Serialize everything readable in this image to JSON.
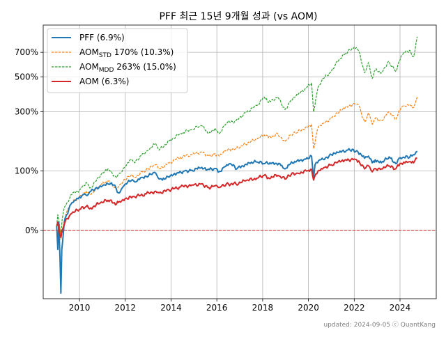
{
  "chart_data": {
    "type": "line",
    "title": "PFF 최근 15년 9개월 성과 (vs AOM)",
    "xlabel": "",
    "ylabel": "",
    "y_scale": "log(1+r)",
    "x_range": [
      "2008-06-01",
      "2025-08-01"
    ],
    "y_range": [
      -0.55,
      10.0
    ],
    "x_ticks": [
      {
        "label": "2010",
        "date": "2010-01-01"
      },
      {
        "label": "2012",
        "date": "2012-01-01"
      },
      {
        "label": "2014",
        "date": "2014-01-01"
      },
      {
        "label": "2016",
        "date": "2016-01-01"
      },
      {
        "label": "2018",
        "date": "2018-01-01"
      },
      {
        "label": "2020",
        "date": "2020-01-01"
      },
      {
        "label": "2022",
        "date": "2022-01-01"
      },
      {
        "label": "2024",
        "date": "2024-01-01"
      }
    ],
    "y_ticks": [
      {
        "label": "0%",
        "value": 0
      },
      {
        "label": "100%",
        "value": 1
      },
      {
        "label": "300%",
        "value": 3
      },
      {
        "label": "500%",
        "value": 5
      },
      {
        "label": "700%",
        "value": 7
      }
    ],
    "grid": true,
    "legend_position": "top-left",
    "reference_line": {
      "value": 0,
      "color": "#d62728",
      "style": "dashed"
    },
    "series": [
      {
        "name": "PFF (6.9%)",
        "name_parts": [
          "PFF (6.9%)",
          "",
          ""
        ],
        "color": "#1f77b4",
        "style": "solid",
        "width": 2,
        "points": [
          [
            "2009-01-02",
            0.05
          ],
          [
            "2009-01-20",
            -0.2
          ],
          [
            "2009-02-05",
            0.1
          ],
          [
            "2009-02-25",
            -0.3
          ],
          [
            "2009-03-10",
            -0.52
          ],
          [
            "2009-03-25",
            -0.2
          ],
          [
            "2009-04-10",
            -0.1
          ],
          [
            "2009-04-28",
            0.05
          ],
          [
            "2009-05-15",
            0.15
          ],
          [
            "2009-06-10",
            0.2
          ],
          [
            "2009-07-15",
            0.28
          ],
          [
            "2009-09-01",
            0.38
          ],
          [
            "2009-11-01",
            0.42
          ],
          [
            "2010-01-01",
            0.48
          ],
          [
            "2010-03-01",
            0.52
          ],
          [
            "2010-05-01",
            0.5
          ],
          [
            "2010-07-01",
            0.58
          ],
          [
            "2010-10-01",
            0.65
          ],
          [
            "2011-01-01",
            0.68
          ],
          [
            "2011-04-01",
            0.72
          ],
          [
            "2011-07-01",
            0.7
          ],
          [
            "2011-09-15",
            0.55
          ],
          [
            "2011-11-01",
            0.62
          ],
          [
            "2012-01-01",
            0.72
          ],
          [
            "2012-04-01",
            0.78
          ],
          [
            "2012-06-01",
            0.76
          ],
          [
            "2012-09-01",
            0.85
          ],
          [
            "2012-12-01",
            0.88
          ],
          [
            "2013-03-01",
            0.92
          ],
          [
            "2013-05-01",
            0.95
          ],
          [
            "2013-06-25",
            0.82
          ],
          [
            "2013-09-01",
            0.84
          ],
          [
            "2013-12-01",
            0.86
          ],
          [
            "2014-04-01",
            0.95
          ],
          [
            "2014-08-01",
            1.0
          ],
          [
            "2014-12-01",
            1.02
          ],
          [
            "2015-04-01",
            1.07
          ],
          [
            "2015-08-01",
            1.03
          ],
          [
            "2015-12-01",
            1.06
          ],
          [
            "2016-02-10",
            0.99
          ],
          [
            "2016-05-01",
            1.1
          ],
          [
            "2016-08-01",
            1.18
          ],
          [
            "2016-11-15",
            1.05
          ],
          [
            "2017-02-01",
            1.12
          ],
          [
            "2017-06-01",
            1.2
          ],
          [
            "2017-10-01",
            1.22
          ],
          [
            "2018-02-01",
            1.18
          ],
          [
            "2018-06-01",
            1.2
          ],
          [
            "2018-10-01",
            1.18
          ],
          [
            "2018-12-24",
            1.05
          ],
          [
            "2019-03-01",
            1.15
          ],
          [
            "2019-07-01",
            1.25
          ],
          [
            "2019-11-01",
            1.3
          ],
          [
            "2020-02-20",
            1.38
          ],
          [
            "2020-03-23",
            0.85
          ],
          [
            "2020-04-15",
            1.15
          ],
          [
            "2020-07-01",
            1.28
          ],
          [
            "2020-10-01",
            1.34
          ],
          [
            "2021-01-01",
            1.42
          ],
          [
            "2021-05-01",
            1.48
          ],
          [
            "2021-09-01",
            1.55
          ],
          [
            "2021-12-01",
            1.58
          ],
          [
            "2022-03-01",
            1.5
          ],
          [
            "2022-06-15",
            1.32
          ],
          [
            "2022-08-15",
            1.38
          ],
          [
            "2022-10-15",
            1.2
          ],
          [
            "2022-12-01",
            1.28
          ],
          [
            "2023-03-10",
            1.2
          ],
          [
            "2023-06-01",
            1.3
          ],
          [
            "2023-08-01",
            1.32
          ],
          [
            "2023-10-25",
            1.18
          ],
          [
            "2023-12-15",
            1.32
          ],
          [
            "2024-03-01",
            1.35
          ],
          [
            "2024-06-01",
            1.34
          ],
          [
            "2024-08-01",
            1.42
          ],
          [
            "2024-10-01",
            1.52
          ]
        ]
      },
      {
        "name": "AOMSTD 170% (10.3%)",
        "name_parts": [
          "AOM",
          "STD",
          " 170% (10.3%)"
        ],
        "color": "#ff7f0e",
        "style": "dashed",
        "width": 1.2,
        "points": [
          [
            "2009-01-02",
            0.05
          ],
          [
            "2009-01-20",
            -0.05
          ],
          [
            "2009-02-10",
            0.08
          ],
          [
            "2009-03-10",
            -0.1
          ],
          [
            "2009-04-10",
            0.0
          ],
          [
            "2009-05-01",
            0.12
          ],
          [
            "2009-06-15",
            0.25
          ],
          [
            "2009-09-01",
            0.38
          ],
          [
            "2010-01-01",
            0.48
          ],
          [
            "2010-04-15",
            0.58
          ],
          [
            "2010-07-01",
            0.52
          ],
          [
            "2010-12-01",
            0.7
          ],
          [
            "2011-04-01",
            0.78
          ],
          [
            "2011-08-15",
            0.62
          ],
          [
            "2011-10-01",
            0.7
          ],
          [
            "2012-01-01",
            0.8
          ],
          [
            "2012-04-01",
            0.9
          ],
          [
            "2012-06-01",
            0.86
          ],
          [
            "2012-10-01",
            0.98
          ],
          [
            "2013-01-01",
            1.05
          ],
          [
            "2013-05-01",
            1.15
          ],
          [
            "2013-06-25",
            1.05
          ],
          [
            "2013-12-01",
            1.2
          ],
          [
            "2014-06-01",
            1.35
          ],
          [
            "2014-12-01",
            1.42
          ],
          [
            "2015-05-01",
            1.5
          ],
          [
            "2015-08-25",
            1.38
          ],
          [
            "2015-12-01",
            1.45
          ],
          [
            "2016-02-10",
            1.38
          ],
          [
            "2016-06-01",
            1.55
          ],
          [
            "2016-11-01",
            1.6
          ],
          [
            "2017-04-01",
            1.75
          ],
          [
            "2017-10-01",
            1.9
          ],
          [
            "2018-01-25",
            2.05
          ],
          [
            "2018-04-01",
            1.95
          ],
          [
            "2018-09-01",
            2.08
          ],
          [
            "2018-12-24",
            1.82
          ],
          [
            "2019-04-01",
            2.05
          ],
          [
            "2019-07-15",
            2.15
          ],
          [
            "2019-12-01",
            2.35
          ],
          [
            "2020-02-20",
            2.45
          ],
          [
            "2020-03-23",
            1.6
          ],
          [
            "2020-06-01",
            2.3
          ],
          [
            "2020-09-01",
            2.5
          ],
          [
            "2020-12-31",
            2.7
          ],
          [
            "2021-04-01",
            2.95
          ],
          [
            "2021-08-01",
            3.15
          ],
          [
            "2021-12-31",
            3.4
          ],
          [
            "2022-03-15",
            3.3
          ],
          [
            "2022-06-15",
            2.55
          ],
          [
            "2022-08-15",
            2.95
          ],
          [
            "2022-10-15",
            2.45
          ],
          [
            "2022-12-01",
            2.7
          ],
          [
            "2023-03-10",
            2.6
          ],
          [
            "2023-07-01",
            3.0
          ],
          [
            "2023-10-25",
            2.65
          ],
          [
            "2023-12-31",
            3.05
          ],
          [
            "2024-03-01",
            3.3
          ],
          [
            "2024-06-01",
            3.35
          ],
          [
            "2024-08-05",
            3.2
          ],
          [
            "2024-10-01",
            3.75
          ]
        ]
      },
      {
        "name": "AOMMDD 263% (15.0%)",
        "name_parts": [
          "AOM",
          "MDD",
          " 263% (15.0%)"
        ],
        "color": "#2ca02c",
        "style": "dashed",
        "width": 1.2,
        "points": [
          [
            "2009-01-02",
            0.05
          ],
          [
            "2009-01-20",
            0.2
          ],
          [
            "2009-02-10",
            0.1
          ],
          [
            "2009-03-10",
            -0.05
          ],
          [
            "2009-04-01",
            0.15
          ],
          [
            "2009-05-01",
            0.3
          ],
          [
            "2009-06-15",
            0.38
          ],
          [
            "2009-09-01",
            0.52
          ],
          [
            "2010-01-01",
            0.6
          ],
          [
            "2010-04-15",
            0.75
          ],
          [
            "2010-07-01",
            0.65
          ],
          [
            "2010-12-01",
            0.9
          ],
          [
            "2011-04-01",
            1.05
          ],
          [
            "2011-08-15",
            0.85
          ],
          [
            "2011-10-01",
            0.95
          ],
          [
            "2012-01-01",
            1.1
          ],
          [
            "2012-04-01",
            1.3
          ],
          [
            "2012-06-01",
            1.2
          ],
          [
            "2012-10-01",
            1.45
          ],
          [
            "2013-01-01",
            1.55
          ],
          [
            "2013-05-01",
            1.75
          ],
          [
            "2013-06-25",
            1.55
          ],
          [
            "2013-12-01",
            1.85
          ],
          [
            "2014-06-01",
            2.1
          ],
          [
            "2014-12-01",
            2.25
          ],
          [
            "2015-05-01",
            2.4
          ],
          [
            "2015-08-25",
            2.1
          ],
          [
            "2015-12-01",
            2.3
          ],
          [
            "2016-02-10",
            2.1
          ],
          [
            "2016-06-01",
            2.5
          ],
          [
            "2016-11-01",
            2.6
          ],
          [
            "2017-04-01",
            2.95
          ],
          [
            "2017-10-01",
            3.3
          ],
          [
            "2018-01-25",
            3.75
          ],
          [
            "2018-04-01",
            3.45
          ],
          [
            "2018-09-01",
            3.75
          ],
          [
            "2018-12-24",
            3.1
          ],
          [
            "2019-04-01",
            3.6
          ],
          [
            "2019-07-15",
            3.85
          ],
          [
            "2019-12-01",
            4.3
          ],
          [
            "2020-02-20",
            4.6
          ],
          [
            "2020-03-23",
            3.0
          ],
          [
            "2020-06-01",
            4.3
          ],
          [
            "2020-09-01",
            4.9
          ],
          [
            "2020-12-31",
            5.4
          ],
          [
            "2021-04-01",
            6.2
          ],
          [
            "2021-08-01",
            6.8
          ],
          [
            "2021-12-31",
            7.5
          ],
          [
            "2022-03-15",
            7.1
          ],
          [
            "2022-06-15",
            5.3
          ],
          [
            "2022-08-15",
            6.1
          ],
          [
            "2022-10-15",
            4.9
          ],
          [
            "2022-12-01",
            5.5
          ],
          [
            "2023-03-10",
            5.3
          ],
          [
            "2023-07-01",
            6.2
          ],
          [
            "2023-10-25",
            5.4
          ],
          [
            "2023-12-31",
            6.3
          ],
          [
            "2024-03-01",
            7.0
          ],
          [
            "2024-06-01",
            7.2
          ],
          [
            "2024-08-05",
            6.6
          ],
          [
            "2024-10-01",
            8.6
          ]
        ]
      },
      {
        "name": "AOM (6.3%)",
        "name_parts": [
          "AOM (6.3%)",
          "",
          ""
        ],
        "color": "#d62728",
        "style": "solid",
        "width": 2,
        "points": [
          [
            "2009-01-02",
            0.05
          ],
          [
            "2009-01-20",
            0.1
          ],
          [
            "2009-02-10",
            0.0
          ],
          [
            "2009-03-10",
            -0.08
          ],
          [
            "2009-04-10",
            0.02
          ],
          [
            "2009-05-15",
            0.1
          ],
          [
            "2009-06-15",
            0.15
          ],
          [
            "2009-09-01",
            0.22
          ],
          [
            "2010-01-01",
            0.28
          ],
          [
            "2010-04-15",
            0.32
          ],
          [
            "2010-07-01",
            0.3
          ],
          [
            "2010-12-01",
            0.38
          ],
          [
            "2011-04-01",
            0.42
          ],
          [
            "2011-08-15",
            0.36
          ],
          [
            "2011-10-01",
            0.4
          ],
          [
            "2012-01-01",
            0.45
          ],
          [
            "2012-06-01",
            0.48
          ],
          [
            "2012-12-01",
            0.53
          ],
          [
            "2013-05-01",
            0.58
          ],
          [
            "2013-06-25",
            0.55
          ],
          [
            "2013-12-01",
            0.6
          ],
          [
            "2014-06-01",
            0.66
          ],
          [
            "2014-12-01",
            0.7
          ],
          [
            "2015-05-01",
            0.72
          ],
          [
            "2015-08-25",
            0.65
          ],
          [
            "2015-12-01",
            0.68
          ],
          [
            "2016-02-10",
            0.65
          ],
          [
            "2016-06-01",
            0.72
          ],
          [
            "2016-11-01",
            0.72
          ],
          [
            "2017-04-01",
            0.78
          ],
          [
            "2017-10-01",
            0.84
          ],
          [
            "2018-01-25",
            0.9
          ],
          [
            "2018-04-01",
            0.85
          ],
          [
            "2018-09-01",
            0.9
          ],
          [
            "2018-12-24",
            0.82
          ],
          [
            "2019-04-01",
            0.92
          ],
          [
            "2019-07-15",
            0.95
          ],
          [
            "2019-12-01",
            1.0
          ],
          [
            "2020-02-20",
            1.04
          ],
          [
            "2020-03-23",
            0.8
          ],
          [
            "2020-06-01",
            1.0
          ],
          [
            "2020-09-01",
            1.08
          ],
          [
            "2020-12-31",
            1.15
          ],
          [
            "2021-04-01",
            1.2
          ],
          [
            "2021-08-01",
            1.27
          ],
          [
            "2021-12-31",
            1.3
          ],
          [
            "2022-03-15",
            1.25
          ],
          [
            "2022-06-15",
            1.05
          ],
          [
            "2022-08-15",
            1.13
          ],
          [
            "2022-10-15",
            0.98
          ],
          [
            "2022-12-01",
            1.06
          ],
          [
            "2023-03-10",
            1.05
          ],
          [
            "2023-07-01",
            1.12
          ],
          [
            "2023-10-25",
            1.05
          ],
          [
            "2023-12-31",
            1.18
          ],
          [
            "2024-03-01",
            1.22
          ],
          [
            "2024-06-01",
            1.23
          ],
          [
            "2024-08-05",
            1.2
          ],
          [
            "2024-10-01",
            1.32
          ]
        ]
      }
    ],
    "footer": "updated: 2024-09-05 ⓒ QuantKang"
  }
}
